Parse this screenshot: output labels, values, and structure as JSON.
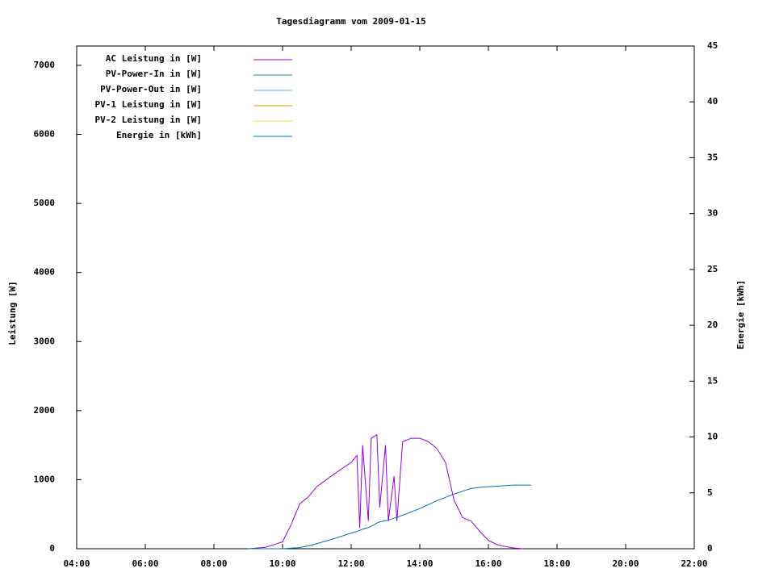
{
  "chart_data": {
    "type": "line",
    "title": "Tagesdiagramm vom 2009-01-15",
    "ylabel": "Leistung [W]",
    "y2label": "Energie [kWh]",
    "x": [
      "09:00",
      "09:30",
      "10:00",
      "10:15",
      "10:30",
      "10:45",
      "11:00",
      "11:30",
      "12:00",
      "12:10",
      "12:15",
      "12:20",
      "12:30",
      "12:35",
      "12:45",
      "12:50",
      "13:00",
      "13:05",
      "13:15",
      "13:20",
      "13:30",
      "13:45",
      "14:00",
      "14:15",
      "14:30",
      "14:45",
      "15:00",
      "15:15",
      "15:30",
      "15:45",
      "16:00",
      "16:15",
      "16:30",
      "16:45",
      "17:00",
      "17:15"
    ],
    "xlim": [
      "04:00",
      "22:00"
    ],
    "xticks": [
      "04:00",
      "06:00",
      "08:00",
      "10:00",
      "12:00",
      "14:00",
      "16:00",
      "18:00",
      "20:00",
      "22:00"
    ],
    "ylim": [
      0,
      7280
    ],
    "yticks": [
      0,
      1000,
      2000,
      3000,
      4000,
      5000,
      6000,
      7000
    ],
    "y2lim": [
      0,
      45
    ],
    "y2ticks": [
      0,
      5,
      10,
      15,
      20,
      25,
      30,
      35,
      40,
      45
    ],
    "legend": "top-left",
    "series": [
      {
        "name": "AC Leistung in [W]",
        "color": "#9400d3",
        "values": [
          0,
          20,
          100,
          350,
          650,
          750,
          900,
          1080,
          1250,
          1350,
          300,
          1500,
          400,
          1600,
          1650,
          600,
          1500,
          400,
          1050,
          400,
          1550,
          1600,
          1600,
          1550,
          1450,
          1250,
          700,
          450,
          400,
          250,
          120,
          60,
          30,
          10,
          0,
          null
        ]
      },
      {
        "name": "PV-Power-In in [W]",
        "color": "#009e73",
        "values": [
          null,
          null,
          null,
          null,
          null,
          null,
          null,
          null,
          null,
          null,
          null,
          null,
          null,
          null,
          null,
          null,
          null,
          null,
          null,
          null,
          null,
          null,
          null,
          null,
          null,
          null,
          null,
          null,
          null,
          null,
          null,
          null,
          null,
          null,
          null,
          null
        ]
      },
      {
        "name": "PV-Power-Out in [W]",
        "color": "#56b4e9",
        "values": [
          null,
          null,
          null,
          null,
          null,
          null,
          null,
          null,
          null,
          null,
          null,
          null,
          null,
          null,
          null,
          null,
          null,
          null,
          null,
          null,
          null,
          null,
          null,
          null,
          null,
          null,
          null,
          null,
          null,
          null,
          null,
          null,
          null,
          null,
          null,
          null
        ]
      },
      {
        "name": "PV-1 Leistung in [W]",
        "color": "#e69f00",
        "values": [
          null,
          null,
          null,
          null,
          null,
          null,
          null,
          null,
          null,
          null,
          null,
          null,
          null,
          null,
          null,
          null,
          null,
          null,
          null,
          null,
          null,
          null,
          null,
          null,
          null,
          null,
          null,
          null,
          null,
          null,
          null,
          null,
          null,
          null,
          null,
          null
        ]
      },
      {
        "name": "PV-2 Leistung in [W]",
        "color": "#f0e442",
        "values": [
          null,
          null,
          null,
          null,
          null,
          null,
          null,
          null,
          null,
          null,
          null,
          null,
          null,
          null,
          null,
          null,
          null,
          null,
          null,
          null,
          null,
          null,
          null,
          null,
          null,
          null,
          null,
          null,
          null,
          null,
          null,
          null,
          null,
          null,
          null,
          null
        ]
      },
      {
        "name": "Energie in [kWh]",
        "color": "#0072b2",
        "axis": "y2",
        "values": [
          0,
          0,
          0,
          0.05,
          0.1,
          0.25,
          0.45,
          0.9,
          1.4,
          1.55,
          1.65,
          1.75,
          1.9,
          2.0,
          2.3,
          2.4,
          2.5,
          2.55,
          2.75,
          2.8,
          3.0,
          3.3,
          3.6,
          3.95,
          4.3,
          4.6,
          4.9,
          5.15,
          5.4,
          5.5,
          5.55,
          5.6,
          5.65,
          5.7,
          5.7,
          5.7
        ]
      }
    ]
  }
}
